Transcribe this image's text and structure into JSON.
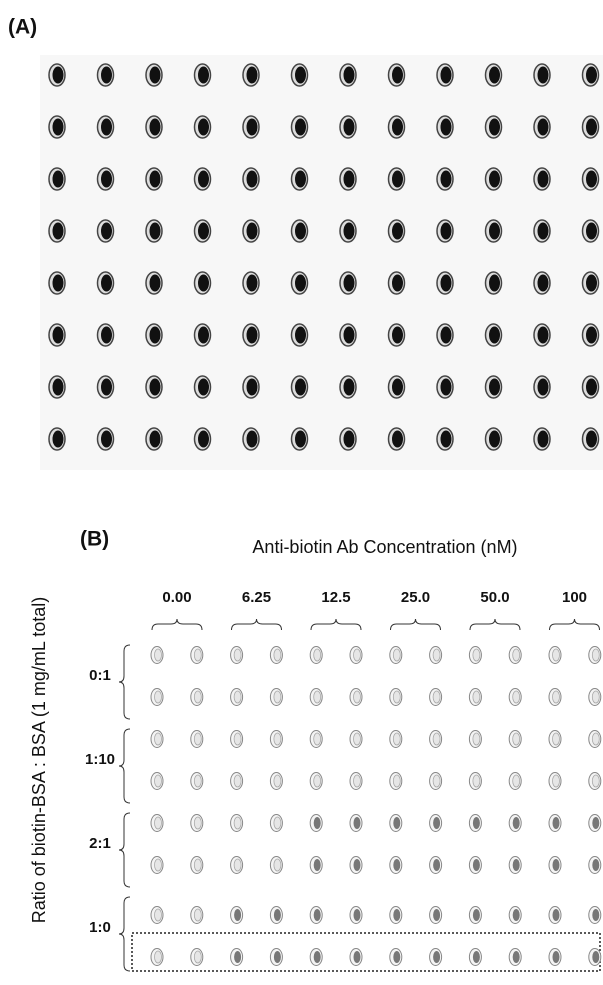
{
  "panel_a": {
    "label": "(A)"
  },
  "panel_b": {
    "label": "(B)",
    "title": "Anti-biotin Ab Concentration (nM)",
    "y_label": "Ratio of biotin-BSA : BSA (1 mg/mL total)",
    "columns": [
      "0.00",
      "6.25",
      "12.5",
      "25.0",
      "50.0",
      "100"
    ],
    "rows": [
      "0:1",
      "1:10",
      "2:1",
      "1:0"
    ]
  }
}
